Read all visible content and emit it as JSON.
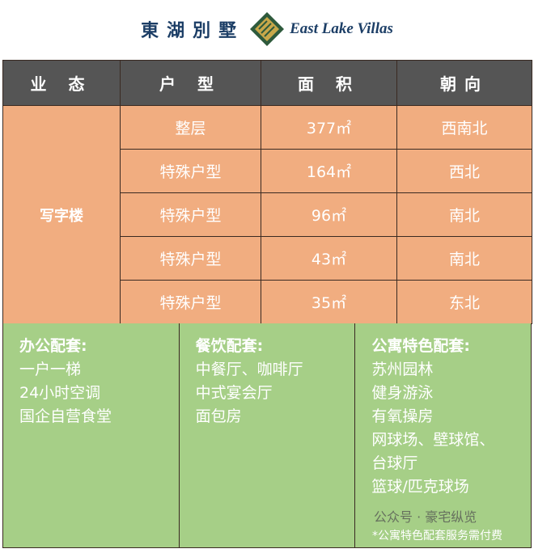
{
  "logo": {
    "cn": "東湖別墅",
    "en": "East Lake Villas"
  },
  "table": {
    "headers": [
      "业 态",
      "户 型",
      "面 积",
      "朝向"
    ],
    "type": "写字楼",
    "rows": [
      {
        "unit": "整层",
        "area": "377㎡",
        "orientation": "西南北"
      },
      {
        "unit": "特殊户型",
        "area": "164㎡",
        "orientation": "西北"
      },
      {
        "unit": "特殊户型",
        "area": "96㎡",
        "orientation": "南北"
      },
      {
        "unit": "特殊户型",
        "area": "43㎡",
        "orientation": "南北"
      },
      {
        "unit": "特殊户型",
        "area": "35㎡",
        "orientation": "东北"
      }
    ]
  },
  "amenities": [
    {
      "title": "办公配套:",
      "items": [
        "一户一梯",
        "24小时空调",
        "国企自营食堂"
      ]
    },
    {
      "title": "餐饮配套:",
      "items": [
        "中餐厅、咖啡厅",
        "中式宴会厅",
        "面包房"
      ]
    },
    {
      "title": "公寓特色配套:",
      "items": [
        "苏州园林",
        "健身游泳",
        "有氧操房",
        "网球场、壁球馆、",
        "台球厅",
        "篮球/匹克球场"
      ]
    }
  ],
  "note": "*公寓特色配套服务需付费",
  "watermark": "公众号 · 豪宅纵览",
  "colors": {
    "header": "#555555",
    "orange": "#f1ad80",
    "green": "#a6cf87",
    "brand": "#1c3e66"
  }
}
